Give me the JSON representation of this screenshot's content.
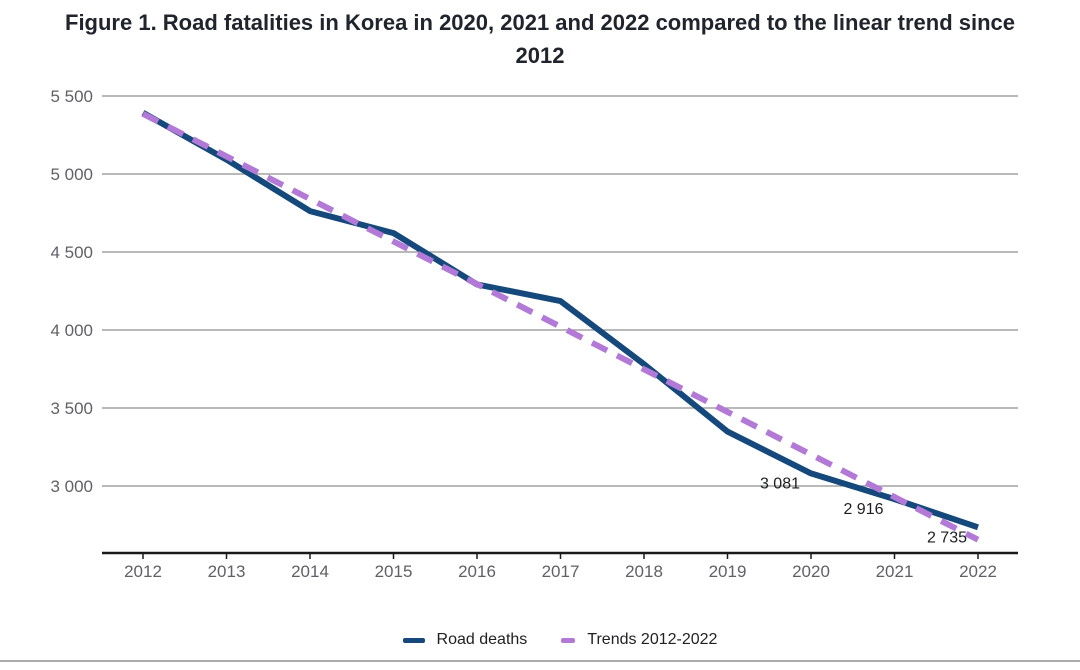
{
  "figure": {
    "title": "Figure 1. Road fatalities in Korea in 2020, 2021 and 2022 compared to the linear trend since 2012",
    "title_line1": "Figure 1. Road fatalities in Korea in 2020, 2021 and 2022 compared to the linear trend since",
    "title_line2": "2012"
  },
  "chart_data": {
    "type": "line",
    "title": "Figure 1. Road fatalities in Korea in 2020, 2021 and 2022 compared to the linear trend since 2012",
    "xlabel": "",
    "ylabel": "",
    "x": [
      2012,
      2013,
      2014,
      2015,
      2016,
      2017,
      2018,
      2019,
      2020,
      2021,
      2022
    ],
    "series": [
      {
        "name": "Road deaths",
        "style": "solid",
        "color": "#15497c",
        "values": [
          5392,
          5092,
          4762,
          4621,
          4292,
          4185,
          3781,
          3349,
          3081,
          2916,
          2735
        ]
      },
      {
        "name": "Trends 2012-2022",
        "style": "dashed",
        "color": "#b279d6",
        "values": [
          5386,
          5113,
          4840,
          4567,
          4294,
          4021,
          3748,
          3475,
          3202,
          2929,
          2656
        ]
      }
    ],
    "data_labels": [
      {
        "year": 2020,
        "series": "Road deaths",
        "label": "3 081"
      },
      {
        "year": 2021,
        "series": "Road deaths",
        "label": "2 916"
      },
      {
        "year": 2022,
        "series": "Road deaths",
        "label": "2 735"
      }
    ],
    "y_ticks": [
      {
        "value": 5500,
        "label": "5 500"
      },
      {
        "value": 5000,
        "label": "5 000"
      },
      {
        "value": 4500,
        "label": "4 500"
      },
      {
        "value": 4000,
        "label": "4 000"
      },
      {
        "value": 3500,
        "label": "3 500"
      },
      {
        "value": 3000,
        "label": "3 000"
      }
    ],
    "ylim": [
      2570,
      5560
    ],
    "grid": "horizontal-only",
    "legend_position": "bottom"
  },
  "colors": {
    "gridline": "#8f8f8f",
    "axis_line": "#1a1a1a",
    "tick_label": "#5f6166",
    "data_label": "#1c1e21",
    "title": "#21242c",
    "bottom_border": "#ababab"
  }
}
